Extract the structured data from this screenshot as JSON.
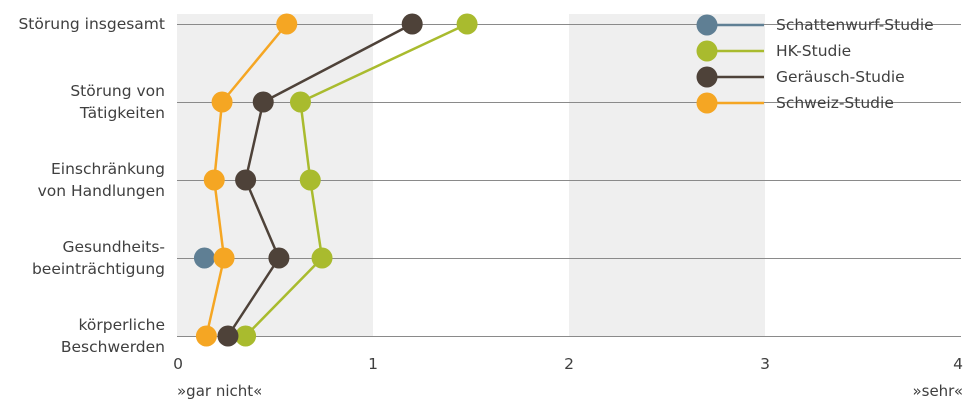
{
  "chart_data": {
    "type": "line",
    "orientation": "horizontal",
    "categories": [
      [
        "Störung insgesamt"
      ],
      [
        "Störung von",
        "Tätigkeiten"
      ],
      [
        "Einschränkung",
        "von Handlungen"
      ],
      [
        "Gesundheits-",
        "beeinträchtigung"
      ],
      [
        "körperliche",
        "Beschwerden"
      ]
    ],
    "x_ticks": [
      "0",
      "1",
      "2",
      "3",
      "4"
    ],
    "xlim": [
      0,
      4
    ],
    "x_end_labels": {
      "left": "»gar nicht«",
      "right": "»sehr«"
    },
    "grid": "horizontal lines per category; alternating shaded bands between ticks",
    "legend_position": "top-right",
    "series": [
      {
        "name": "Schattenwurf-Studie",
        "color": "#5f7f94",
        "values": [
          null,
          null,
          null,
          0.14,
          null
        ]
      },
      {
        "name": "HK-Studie",
        "color": "#a9bb2e",
        "values": [
          1.48,
          0.63,
          0.68,
          0.74,
          0.35
        ]
      },
      {
        "name": "Geräusch-Studie",
        "color": "#4e4239",
        "values": [
          1.2,
          0.44,
          0.35,
          0.52,
          0.26
        ]
      },
      {
        "name": "Schweiz-Studie",
        "color": "#f5a623",
        "values": [
          0.56,
          0.23,
          0.19,
          0.24,
          0.15
        ]
      }
    ]
  },
  "colors": {
    "band": "#efefef",
    "grid": "#8a8a8a",
    "text": "#3f3f3f"
  }
}
